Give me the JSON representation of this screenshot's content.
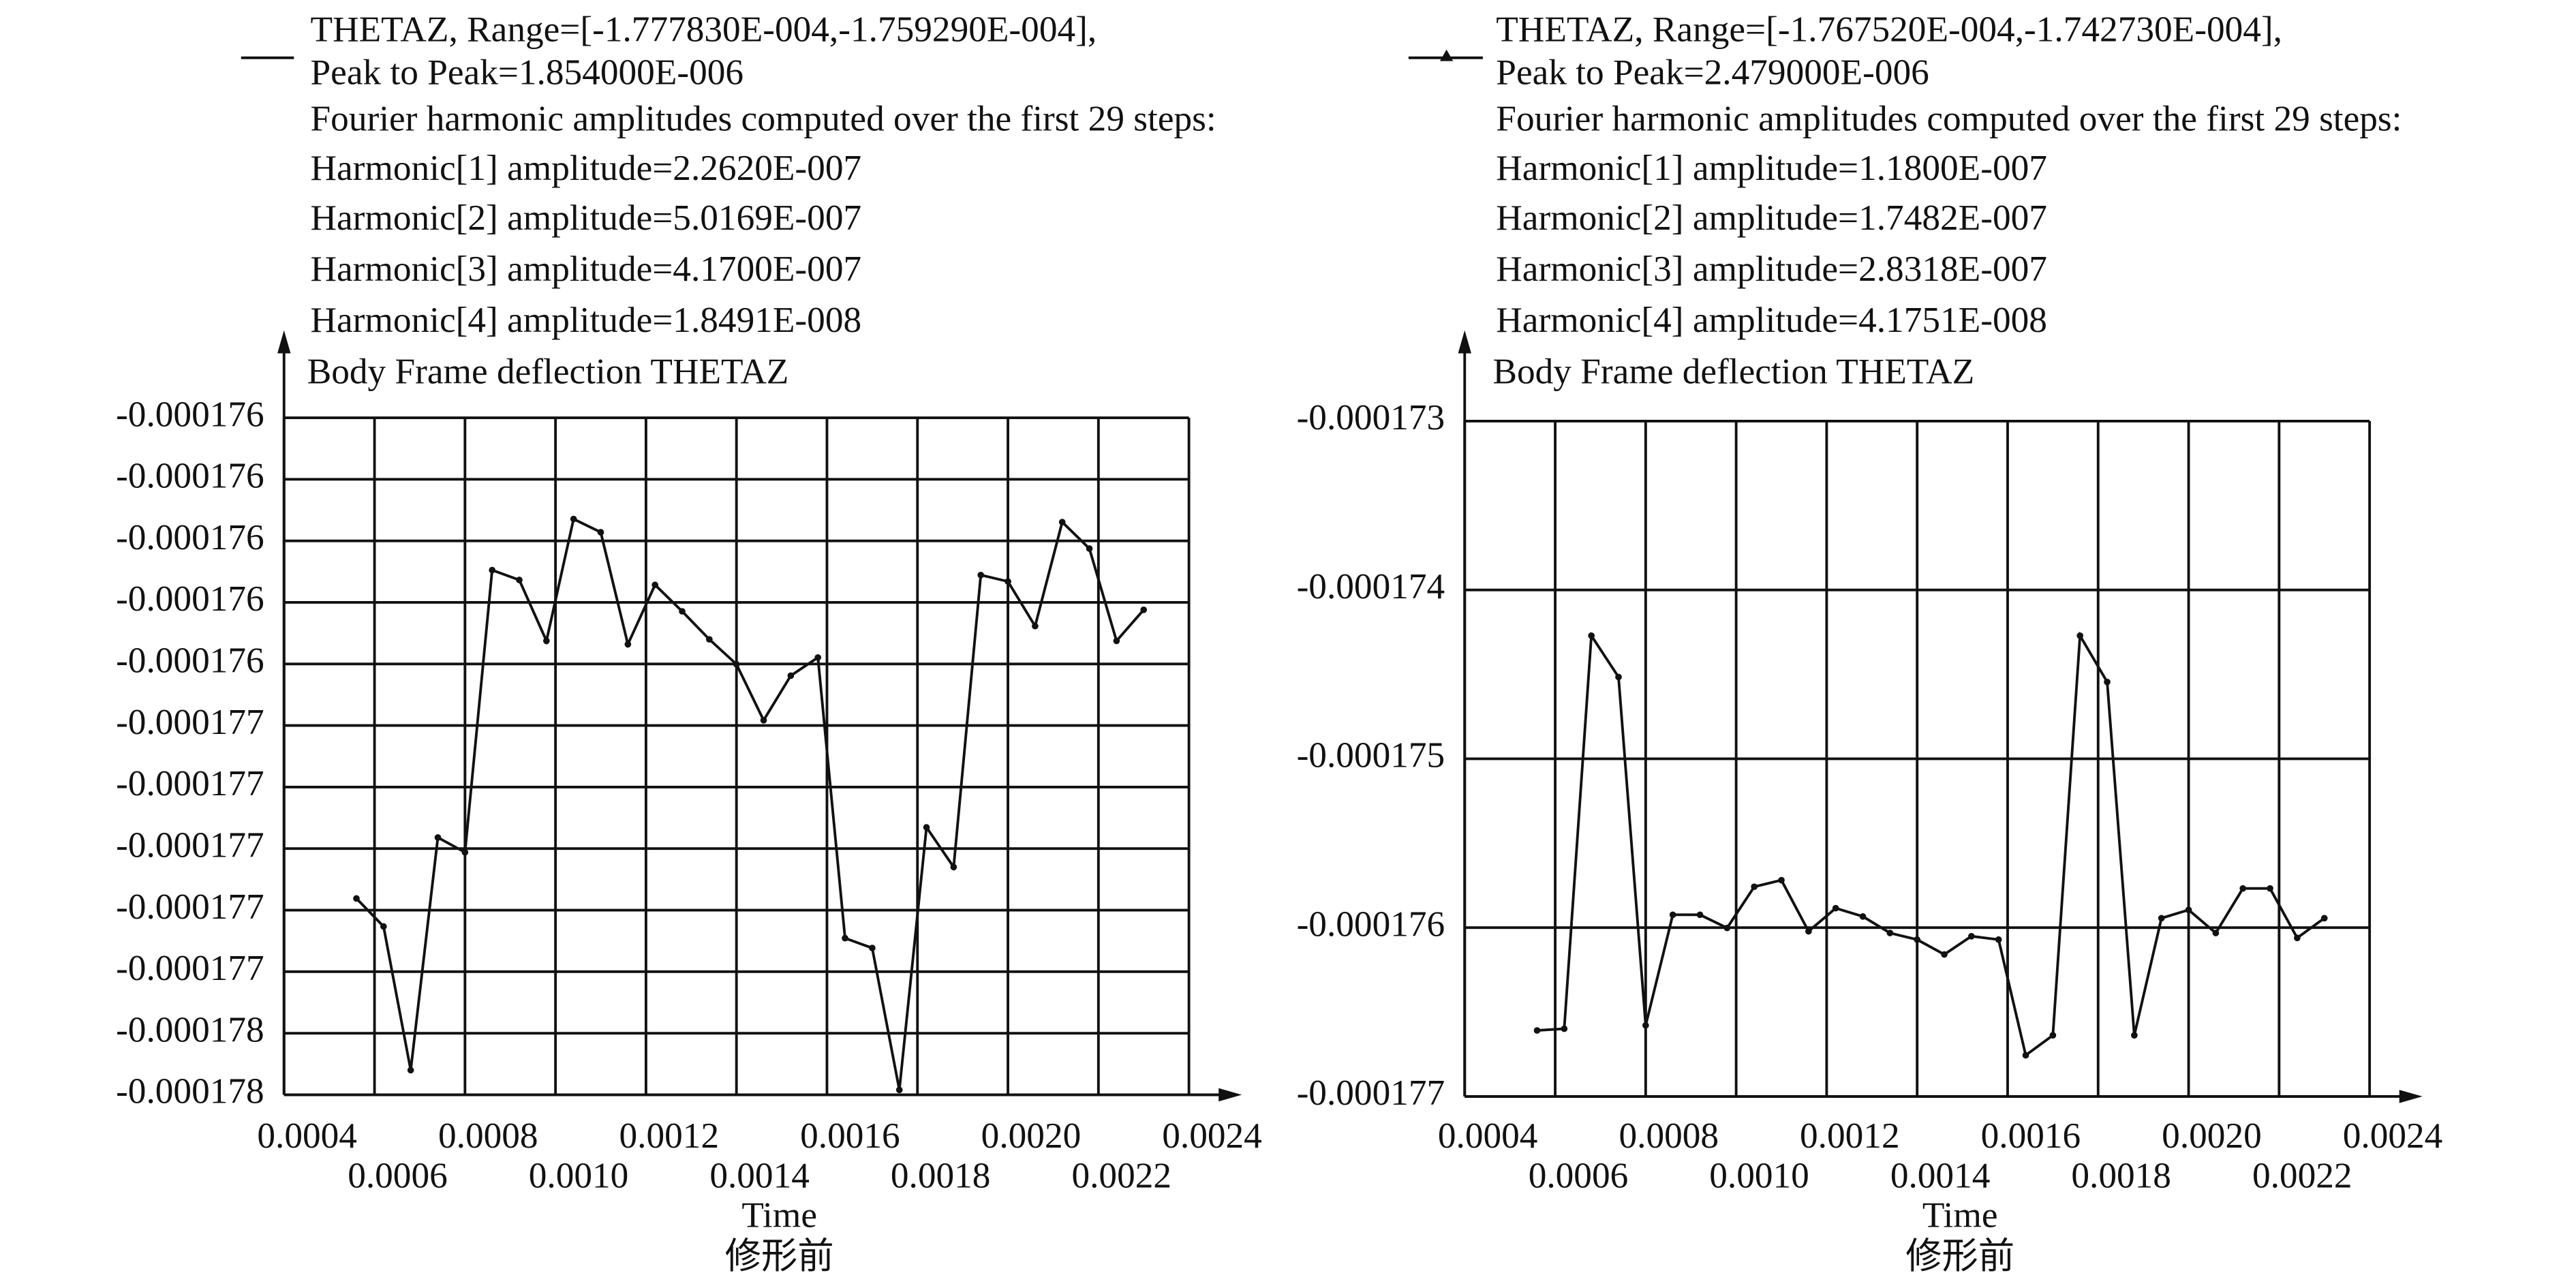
{
  "chart_data": [
    {
      "type": "line",
      "annotations": [
        "THETAZ, Range=[-1.777830E-004,-1.759290E-004],",
        "Peak to Peak=1.854000E-006",
        "Fourier harmonic amplitudes computed over the first 29 steps:",
        "Harmonic[1] amplitude=2.2620E-007",
        "Harmonic[2] amplitude=5.0169E-007",
        "Harmonic[3] amplitude=4.1700E-007",
        "Harmonic[4] amplitude=1.8491E-008"
      ],
      "y_label": "Body Frame deflection THETAZ",
      "x_label": "Time",
      "caption": "修形前",
      "color": "#111111",
      "grid": true,
      "xlim": [
        0.0004,
        0.0024
      ],
      "xticks": [
        0.0004,
        0.0006,
        0.0008,
        {
          "value": 0.001,
          "label": "0.0010"
        },
        0.0012,
        0.0014,
        0.0016,
        0.0018,
        {
          "value": 0.002,
          "label": "0.0020"
        },
        0.0022,
        0.0024
      ],
      "ylim": [
        -0.0001778,
        -0.0001756
      ],
      "yticks": [
        {
          "value": -0.0001778,
          "label": "-0.000178"
        },
        {
          "value": -0.0001776,
          "label": "-0.000178"
        },
        {
          "value": -0.0001774,
          "label": "-0.000177"
        },
        {
          "value": -0.0001772,
          "label": "-0.000177"
        },
        {
          "value": -0.000177,
          "label": "-0.000177"
        },
        {
          "value": -0.0001768,
          "label": "-0.000177"
        },
        {
          "value": -0.0001766,
          "label": "-0.000177"
        },
        {
          "value": -0.0001764,
          "label": "-0.000176"
        },
        {
          "value": -0.0001762,
          "label": "-0.000176"
        },
        {
          "value": -0.000176,
          "label": "-0.000176"
        },
        {
          "value": -0.0001758,
          "label": "-0.000176"
        },
        {
          "value": -0.0001756,
          "label": "-0.000176"
        }
      ],
      "x": [
        0.00056,
        0.00062,
        0.00068,
        0.00074,
        0.0008,
        0.00086,
        0.00092,
        0.00098,
        0.00104,
        0.0011,
        0.00116,
        0.00122,
        0.00128,
        0.00134,
        0.0014,
        0.00146,
        0.00152,
        0.00158,
        0.00164,
        0.0017,
        0.00176,
        0.00182,
        0.00188,
        0.00194,
        0.002,
        0.00206,
        0.00212,
        0.00218,
        0.00224,
        0.0023
      ],
      "values": [
        -0.000177162,
        -0.000177253,
        -0.00017772,
        -0.000176964,
        -0.000177012,
        -0.000176095,
        -0.000176127,
        -0.000176325,
        -0.000175929,
        -0.000175972,
        -0.000176336,
        -0.000176143,
        -0.000176229,
        -0.00017632,
        -0.000176401,
        -0.000176583,
        -0.000176438,
        -0.000176379,
        -0.000177291,
        -0.000177323,
        -0.000177784,
        -0.000176931,
        -0.00017706,
        -0.000176111,
        -0.000176132,
        -0.000176277,
        -0.000175939,
        -0.000176025,
        -0.000176325,
        -0.000176224
      ]
    },
    {
      "type": "line",
      "annotations": [
        "THETAZ, Range=[-1.767520E-004,-1.742730E-004],",
        "Peak to Peak=2.479000E-006",
        "Fourier harmonic amplitudes computed over the first 29 steps:",
        "Harmonic[1] amplitude=1.1800E-007",
        "Harmonic[2] amplitude=1.7482E-007",
        "Harmonic[3] amplitude=2.8318E-007",
        "Harmonic[4] amplitude=4.1751E-008"
      ],
      "y_label": "Body Frame deflection THETAZ",
      "x_label": "Time",
      "caption": "修形前",
      "color": "#111111",
      "grid": true,
      "xlim": [
        0.0004,
        0.0024
      ],
      "xticks": [
        0.0004,
        0.0006,
        0.0008,
        {
          "value": 0.001,
          "label": "0.0010"
        },
        0.0012,
        0.0014,
        0.0016,
        0.0018,
        {
          "value": 0.002,
          "label": "0.0020"
        },
        0.0022,
        0.0024
      ],
      "ylim": [
        -0.000177,
        -0.000173
      ],
      "yticks": [
        -0.000177,
        -0.000176,
        -0.000175,
        -0.000174,
        -0.000173
      ],
      "x": [
        0.00056,
        0.00062,
        0.00068,
        0.00074,
        0.0008,
        0.00086,
        0.00092,
        0.00098,
        0.00104,
        0.0011,
        0.00116,
        0.00122,
        0.00128,
        0.00134,
        0.0014,
        0.00146,
        0.00152,
        0.00158,
        0.00164,
        0.0017,
        0.00176,
        0.00182,
        0.00188,
        0.00194,
        0.002,
        0.00206,
        0.00212,
        0.00218,
        0.00224,
        0.0023
      ],
      "values": [
        -0.000176609,
        -0.000176599,
        -0.000174271,
        -0.000174516,
        -0.000176579,
        -0.000175924,
        -0.000175924,
        -0.000176002,
        -0.000175758,
        -0.000175719,
        -0.000176022,
        -0.000175885,
        -0.000175934,
        -0.000176032,
        -0.000176071,
        -0.000176159,
        -0.000176051,
        -0.000176071,
        -0.000176756,
        -0.000176638,
        -0.000174271,
        -0.000174545,
        -0.000176638,
        -0.000175944,
        -0.000175895,
        -0.000176032,
        -0.000175768,
        -0.000175768,
        -0.000176061,
        -0.000175944
      ]
    }
  ]
}
